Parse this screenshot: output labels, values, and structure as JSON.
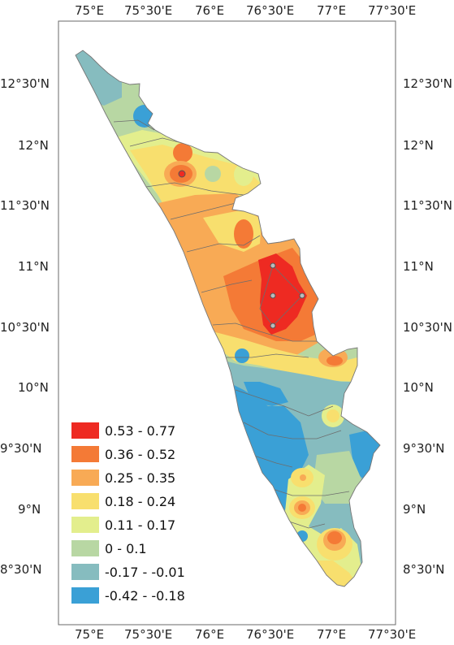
{
  "map": {
    "x_ticks": [
      "75°E",
      "75°30'E",
      "76°E",
      "76°30'E",
      "77°E",
      "77°30'E"
    ],
    "y_ticks": [
      "12°30'N",
      "12°N",
      "11°30'N",
      "11°N",
      "10°30'N",
      "10°N",
      "9°30'N",
      "9°N",
      "8°30'N"
    ]
  },
  "legend": {
    "items": [
      {
        "label": "0.53 - 0.77",
        "color": "#ee2a22"
      },
      {
        "label": "0.36 - 0.52",
        "color": "#f47a36"
      },
      {
        "label": "0.25 - 0.35",
        "color": "#f8aa55"
      },
      {
        "label": "0.18 - 0.24",
        "color": "#f8df6e"
      },
      {
        "label": "0.11 - 0.17",
        "color": "#e3ee8d"
      },
      {
        "label": "0 - 0.1",
        "color": "#b8d7a3"
      },
      {
        "label": "-0.17 - -0.01",
        "color": "#86bcbf"
      },
      {
        "label": "-0.42 - -0.18",
        "color": "#3aa0d6"
      }
    ]
  }
}
